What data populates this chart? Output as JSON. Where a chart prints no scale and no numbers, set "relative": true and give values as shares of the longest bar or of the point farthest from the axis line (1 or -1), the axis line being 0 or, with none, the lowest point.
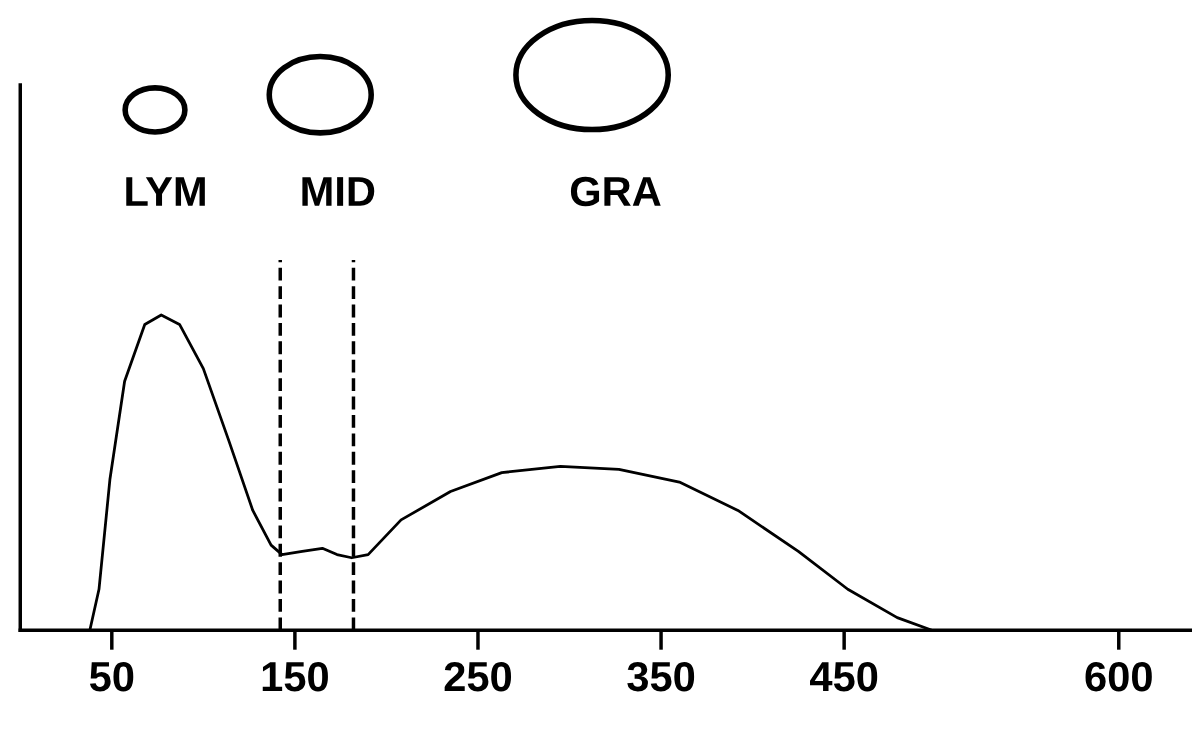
{
  "chart_data": {
    "type": "line",
    "relative": true,
    "x": [
      38,
      43,
      49,
      57,
      68,
      77,
      87,
      100,
      114,
      127,
      137,
      143,
      154,
      165,
      173,
      181,
      190,
      208,
      235,
      263,
      295,
      327,
      360,
      392,
      425,
      452,
      479,
      498
    ],
    "series": [
      {
        "color": "#000000",
        "values": [
          0,
          0.13,
          0.48,
          0.79,
          0.97,
          1.0,
          0.97,
          0.83,
          0.6,
          0.38,
          0.27,
          0.24,
          0.25,
          0.26,
          0.24,
          0.23,
          0.24,
          0.35,
          0.44,
          0.5,
          0.52,
          0.51,
          0.47,
          0.38,
          0.25,
          0.13,
          0.04,
          0
        ]
      }
    ],
    "xlim": [
      0,
      640
    ],
    "xticks": [
      50,
      150,
      250,
      350,
      450,
      600
    ],
    "ref_lines": [
      {
        "axis": "x",
        "value": 142,
        "color": "#000000",
        "line_style": "dashed"
      },
      {
        "axis": "x",
        "value": 182,
        "color": "#000000",
        "line_style": "dashed"
      }
    ],
    "annotations": [
      "LYM",
      "MID",
      "GRA"
    ],
    "grid": false,
    "legend": false,
    "marker": "none",
    "line_style": "solid",
    "tick_labels": "x"
  }
}
